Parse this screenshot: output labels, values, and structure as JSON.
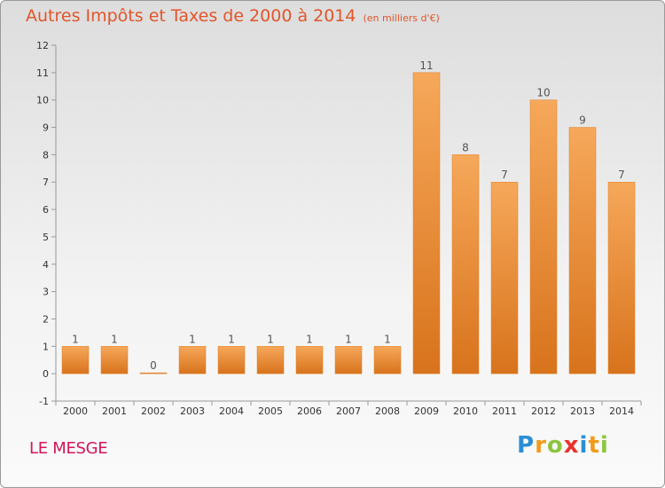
{
  "header": {
    "title": "Autres Impôts et Taxes de 2000 à 2014",
    "unit": "(en milliers d'€)"
  },
  "footer": {
    "place": "LE MESGE",
    "logo_letters": [
      "P",
      "r",
      "o",
      "x",
      "i",
      "t",
      "i"
    ],
    "logo_colors": [
      "#2a8fd6",
      "#f29a1a",
      "#8cc63f",
      "#e8322c",
      "#2a8fd6",
      "#f29a1a",
      "#8cc63f"
    ]
  },
  "chart_data": {
    "type": "bar",
    "title": "Autres Impôts et Taxes de 2000 à 2014",
    "subtitle": "(en milliers d'€)",
    "categories": [
      "2000",
      "2001",
      "2002",
      "2003",
      "2004",
      "2005",
      "2006",
      "2007",
      "2008",
      "2009",
      "2010",
      "2011",
      "2012",
      "2013",
      "2014"
    ],
    "values": [
      1,
      1,
      0,
      1,
      1,
      1,
      1,
      1,
      1,
      11,
      8,
      7,
      10,
      9,
      7
    ],
    "ylim": [
      -1,
      12
    ],
    "yticks": [
      -1,
      0,
      1,
      2,
      3,
      4,
      5,
      6,
      7,
      8,
      9,
      10,
      11,
      12
    ],
    "grid": false,
    "bar_color": "#f08a2c"
  }
}
